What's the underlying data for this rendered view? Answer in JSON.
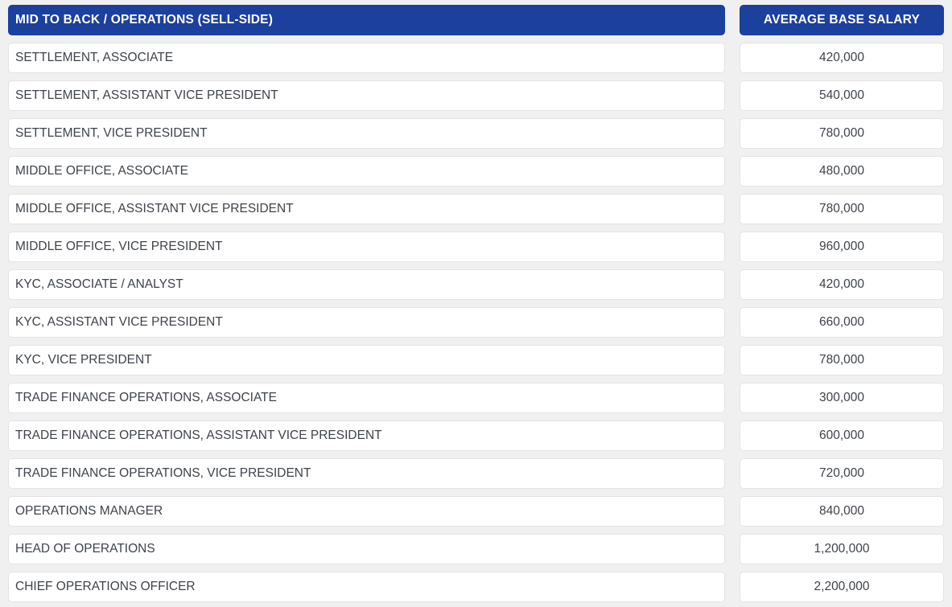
{
  "colors": {
    "page_background": "#f0f0f1",
    "header_background": "#1b409d",
    "header_text": "#ffffff",
    "cell_background": "#ffffff",
    "cell_border": "#e4e4e6",
    "cell_text": "#3e434a"
  },
  "table": {
    "left_header": "MID TO BACK / OPERATIONS (SELL-SIDE)",
    "right_header": "AVERAGE BASE SALARY",
    "rows": [
      {
        "role": "SETTLEMENT, ASSOCIATE",
        "salary": "420,000"
      },
      {
        "role": "SETTLEMENT, ASSISTANT VICE PRESIDENT",
        "salary": "540,000"
      },
      {
        "role": "SETTLEMENT, VICE PRESIDENT",
        "salary": "780,000"
      },
      {
        "role": "MIDDLE OFFICE, ASSOCIATE",
        "salary": "480,000"
      },
      {
        "role": "MIDDLE OFFICE, ASSISTANT VICE PRESIDENT",
        "salary": "780,000"
      },
      {
        "role": "MIDDLE OFFICE, VICE PRESIDENT",
        "salary": "960,000"
      },
      {
        "role": "KYC, ASSOCIATE / ANALYST",
        "salary": "420,000"
      },
      {
        "role": "KYC, ASSISTANT VICE PRESIDENT",
        "salary": "660,000"
      },
      {
        "role": "KYC, VICE PRESIDENT",
        "salary": "780,000"
      },
      {
        "role": "TRADE FINANCE OPERATIONS, ASSOCIATE",
        "salary": "300,000"
      },
      {
        "role": "TRADE FINANCE OPERATIONS, ASSISTANT VICE PRESIDENT",
        "salary": "600,000"
      },
      {
        "role": "TRADE FINANCE OPERATIONS, VICE PRESIDENT",
        "salary": "720,000"
      },
      {
        "role": "OPERATIONS MANAGER",
        "salary": "840,000"
      },
      {
        "role": "HEAD OF OPERATIONS",
        "salary": "1,200,000"
      },
      {
        "role": "CHIEF OPERATIONS OFFICER",
        "salary": "2,200,000"
      }
    ]
  }
}
